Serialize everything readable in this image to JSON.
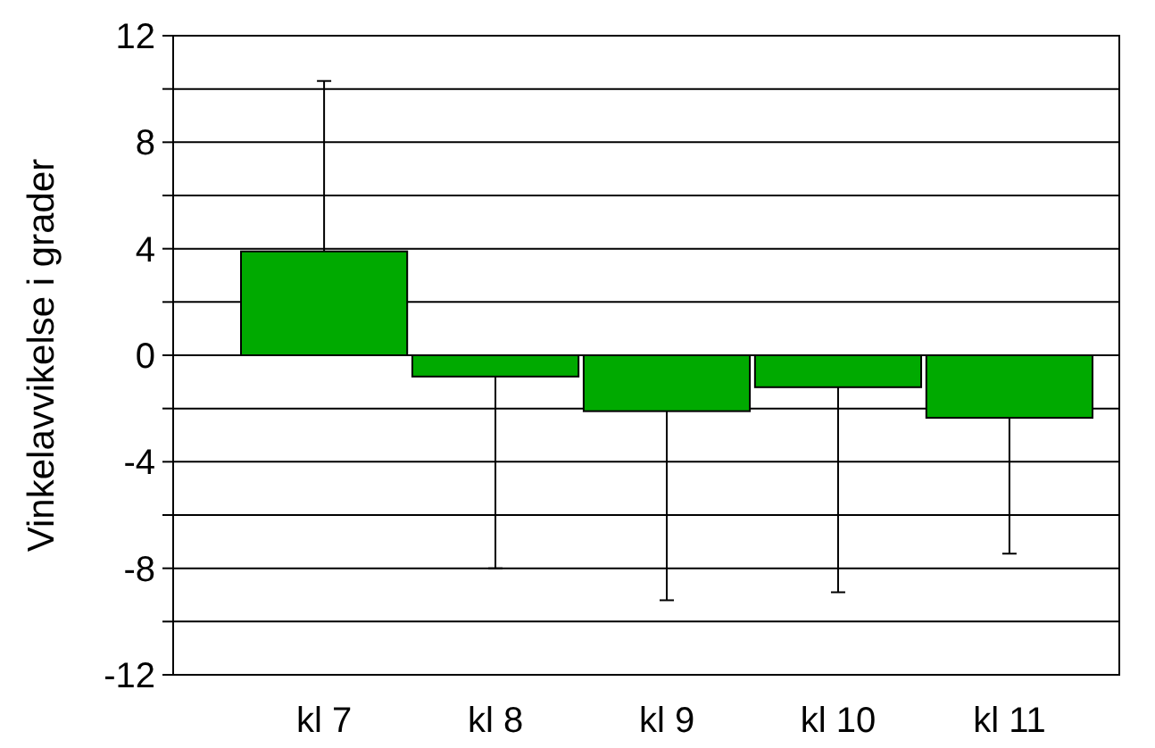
{
  "chart_data": {
    "type": "bar",
    "ylabel": "Vinkelavvikelse i grader",
    "categories": [
      "kl 7",
      "kl 8",
      "kl 9",
      "kl 10",
      "kl 11"
    ],
    "values": [
      3.9,
      -0.8,
      -2.1,
      -1.2,
      -2.35
    ],
    "errors": [
      [
        3.9,
        10.3
      ],
      [
        -8.0,
        -0.8
      ],
      [
        -9.2,
        -2.1
      ],
      [
        -8.9,
        -1.2
      ],
      [
        -7.45,
        -2.35
      ]
    ],
    "color": "#00aa00",
    "ylim": [
      -12,
      12
    ],
    "yticks": [
      -12,
      {
        "value": -10,
        "label": null
      },
      -8,
      {
        "value": -6,
        "label": null
      },
      -4,
      {
        "value": -2,
        "label": null
      },
      0,
      {
        "value": 2,
        "label": null
      },
      4,
      {
        "value": 6,
        "label": null
      },
      8,
      {
        "value": 10,
        "label": null
      },
      12
    ],
    "grid": "y"
  }
}
